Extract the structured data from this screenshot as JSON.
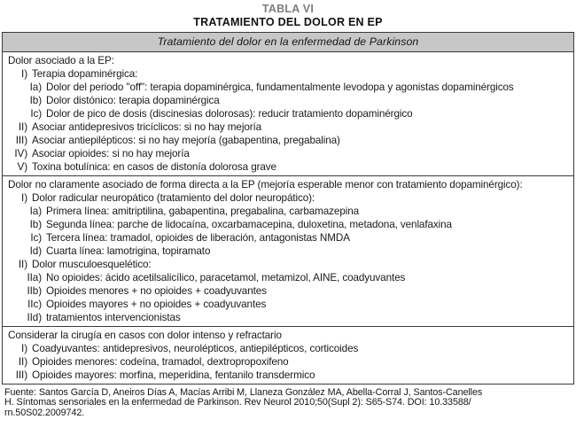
{
  "title": {
    "tag": "TABLA VI",
    "heading": "TRATAMIENTO DEL DOLOR EN EP"
  },
  "table": {
    "header": "Tratamiento del dolor en la enfermedad de Parkinson",
    "sections": [
      {
        "intro": "Dolor asociado a la EP:",
        "rows": [
          {
            "n": "I)",
            "t": "Terapia dopaminérgica:",
            "lvl": 1
          },
          {
            "n": "Ia)",
            "t": "Dolor del periodo \"off\": terapia dopaminérgica, fundamentalmente levodopa y agonistas dopaminérgicos",
            "lvl": 2
          },
          {
            "n": "Ib)",
            "t": "Dolor distónico: terapia dopaminérgica",
            "lvl": 2
          },
          {
            "n": "Ic)",
            "t": "Dolor de pico de dosis (discinesias dolorosas): reducir tratamiento dopaminérgico",
            "lvl": 2
          },
          {
            "n": "II)",
            "t": "Asociar antidepresivos tricíclicos: si no hay mejoría",
            "lvl": 1
          },
          {
            "n": "III)",
            "t": "Asociar antiepilépticos: si no hay mejoría (gabapentina, pregabalina)",
            "lvl": 1
          },
          {
            "n": "IV)",
            "t": "Asociar opioides: si no hay mejoría",
            "lvl": 1
          },
          {
            "n": "V)",
            "t": "Toxina botulínica: en casos de distonía dolorosa grave",
            "lvl": 1
          }
        ]
      },
      {
        "intro": "Dolor no claramente asociado de forma directa a la EP (mejoría esperable menor con tratamiento dopaminérgico):",
        "rows": [
          {
            "n": "I)",
            "t": "Dolor radicular neuropático (tratamiento del dolor neuropático):",
            "lvl": 1
          },
          {
            "n": "Ia)",
            "t": "Primera línea: amitriptilina, gabapentina, pregabalina, carbamazepina",
            "lvl": 2
          },
          {
            "n": "Ib)",
            "t": "Segunda línea: parche de lidocaína, oxcarbamacepina, duloxetina, metadona, venlafaxina",
            "lvl": 2
          },
          {
            "n": "Ic)",
            "t": "Tercera línea: tramadol, opioides de liberación, antagonistas NMDA",
            "lvl": 2
          },
          {
            "n": "Id)",
            "t": "Cuarta línea: lamotrigina, topiramato",
            "lvl": 2
          },
          {
            "n": "II)",
            "t": "Dolor musculoesquelético:",
            "lvl": 1
          },
          {
            "n": "IIa)",
            "t": "No opioides: ácido acetilsalicílico, paracetamol, metamizol, AINE, coadyuvantes",
            "lvl": 2
          },
          {
            "n": "IIb)",
            "t": "Opioides menores + no opioides + coadyuvantes",
            "lvl": 2
          },
          {
            "n": "IIc)",
            "t": "Opioides mayores + no opioides + coadyuvantes",
            "lvl": 2
          },
          {
            "n": "IId)",
            "t": "tratamientos intervencionistas",
            "lvl": 2
          }
        ]
      },
      {
        "intro": "Considerar la cirugía en casos con dolor intenso y refractario",
        "rows": [
          {
            "n": "I)",
            "t": "Coadyuvantes: antidepresivos, neurolépticos, antiepilépticos, corticoides",
            "lvl": 1
          },
          {
            "n": "II)",
            "t": "Opioides menores: codeína, tramadol, dextropropoxifeno",
            "lvl": 1
          },
          {
            "n": "III)",
            "t": "Opioides mayores: morfina, meperidina, fentanilo transdermico",
            "lvl": 1
          }
        ]
      }
    ]
  },
  "footer": {
    "lines": [
      "Fuente: Santos García D, Aneiros Días A, Macías Arribi M, Llaneza González MA, Abella-Corral J, Santos-Canelles",
      "H. Síntomas sensoriales en la enfermedad de Parkinson. Rev Neurol 2010;50(Supl 2): S65-S74. DOI: 10.33588/",
      "rn.50S02.2009742."
    ]
  },
  "colors": {
    "header_bg": "#c7c7c7",
    "border": "#3a3a3a",
    "text": "#1a1a1a",
    "title_tag": "#7d7d7d"
  }
}
